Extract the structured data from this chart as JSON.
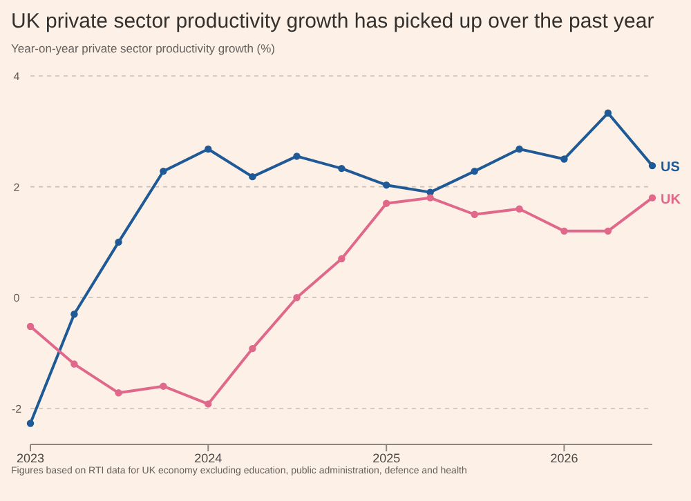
{
  "chart_data": {
    "type": "line",
    "title": "UK private sector productivity growth has picked up over the past year",
    "subtitle": "Year-on-year private sector productivity growth (%)",
    "x": [
      "2023-01",
      "2023-04",
      "2023-07",
      "2023-10",
      "2024-01",
      "2024-04",
      "2024-07",
      "2024-10",
      "2025-01",
      "2025-04",
      "2025-07",
      "2025-10",
      "2026-01",
      "2026-04",
      "2026-07"
    ],
    "series": [
      {
        "name": "US",
        "color": "#1f5a96",
        "values": [
          -2.27,
          -0.3,
          1.0,
          2.28,
          2.68,
          2.18,
          2.55,
          2.33,
          2.03,
          1.9,
          2.28,
          2.68,
          2.5,
          3.33,
          2.38
        ]
      },
      {
        "name": "UK",
        "color": "#e0688a",
        "values": [
          -0.52,
          -1.2,
          -1.72,
          -1.6,
          -1.92,
          -0.92,
          0,
          0.7,
          1.7,
          1.8,
          1.5,
          1.6,
          1.2,
          1.2,
          1.8
        ]
      }
    ],
    "xlim": [
      "2023-01",
      "2026-07"
    ],
    "ylim": [
      -2.65,
      4
    ],
    "yticks": [
      -2,
      0,
      2,
      4
    ],
    "xticks": [
      {
        "value": "2023-01",
        "label": "2023"
      },
      {
        "value": "2024-01",
        "label": "2024"
      },
      {
        "value": "2025-01",
        "label": "2025"
      },
      {
        "value": "2026-01",
        "label": "2026"
      }
    ],
    "grid": "y",
    "marker": "circle",
    "line_style": "solid",
    "legend": "right",
    "annotations": [
      "Figures based on RTI data for UK economy excluding education, public administration, defence and health"
    ]
  }
}
